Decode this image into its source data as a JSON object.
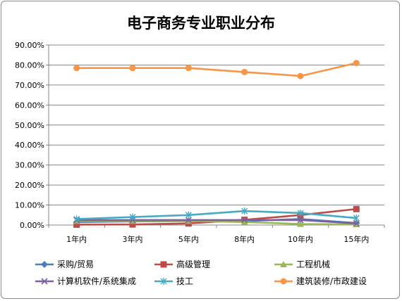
{
  "chart_data": {
    "type": "line",
    "title": "电子商务专业职业分布",
    "xlabel": "",
    "ylabel": "",
    "categories": [
      "1年内",
      "3年内",
      "5年内",
      "8年内",
      "10年内",
      "15年内"
    ],
    "ylim": [
      0,
      90
    ],
    "yticks": [
      "0.00%",
      "10.00%",
      "20.00%",
      "30.00%",
      "40.00%",
      "50.00%",
      "60.00%",
      "70.00%",
      "80.00%",
      "90.00%"
    ],
    "grid": true,
    "legend": "bottom",
    "series": [
      {
        "name": "采购/贸易",
        "values": [
          1.5,
          1.8,
          2.0,
          2.0,
          3.0,
          1.0
        ],
        "color": "#4a7ebb",
        "marker": "diamond"
      },
      {
        "name": "高级管理",
        "values": [
          0.2,
          0.3,
          0.8,
          2.6,
          5.0,
          8.0
        ],
        "color": "#be4b48",
        "marker": "square"
      },
      {
        "name": "工程机械",
        "values": [
          2.0,
          2.0,
          2.0,
          1.5,
          0.5,
          0.3
        ],
        "color": "#98b954",
        "marker": "triangle"
      },
      {
        "name": "计算机软件/系统集成",
        "values": [
          2.5,
          2.5,
          2.5,
          2.5,
          2.5,
          0.8
        ],
        "color": "#7d60a0",
        "marker": "x"
      },
      {
        "name": "技工",
        "values": [
          3.0,
          4.0,
          5.0,
          7.0,
          6.0,
          3.5
        ],
        "color": "#46aac5",
        "marker": "star"
      },
      {
        "name": "建筑装修/市政建设",
        "values": [
          78.5,
          78.5,
          78.5,
          76.5,
          74.5,
          81.0
        ],
        "color": "#f79646",
        "marker": "circle"
      }
    ]
  }
}
